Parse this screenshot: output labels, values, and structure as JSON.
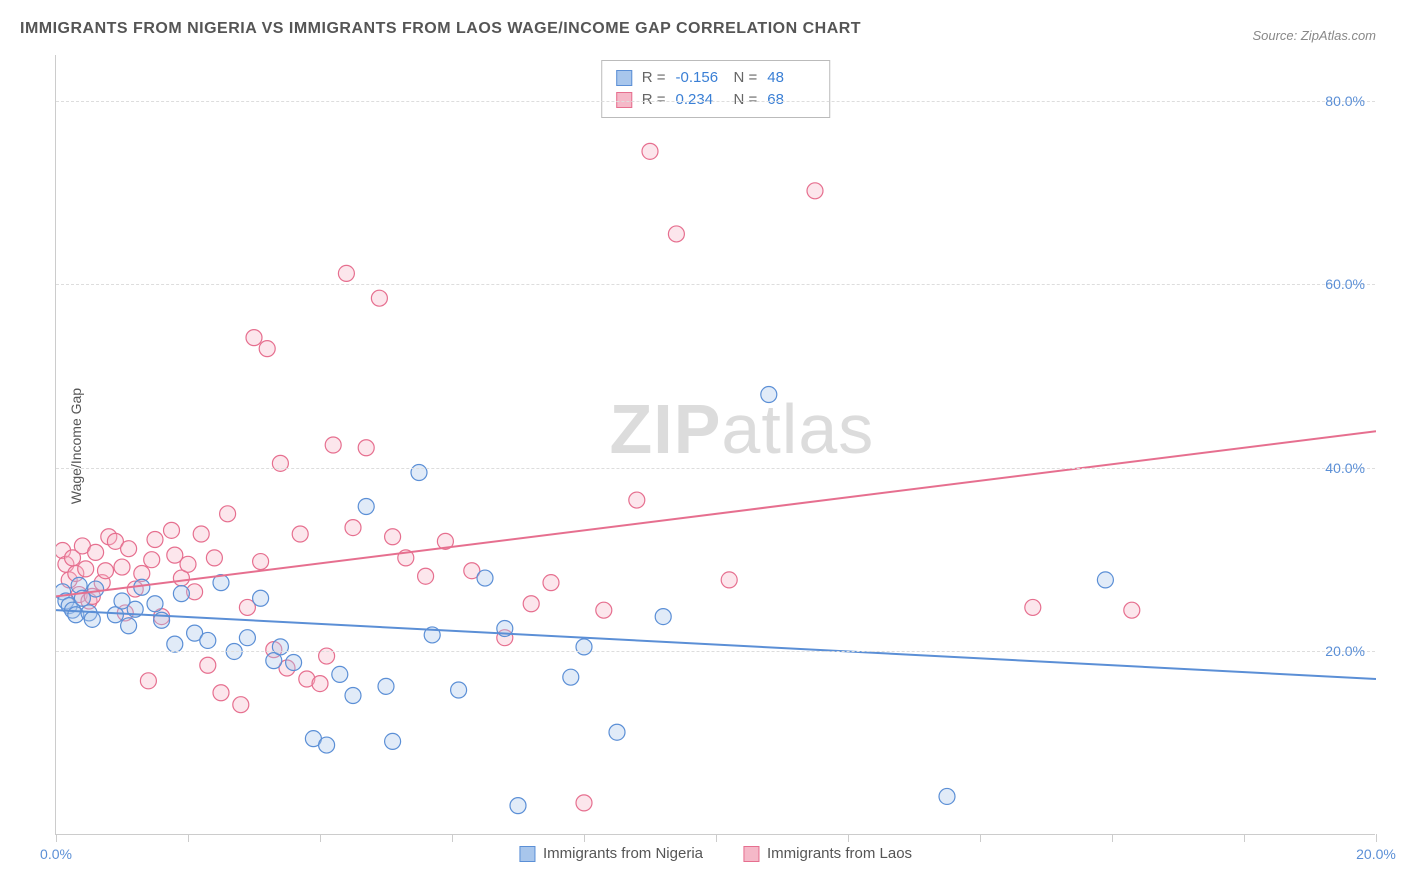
{
  "title": "IMMIGRANTS FROM NIGERIA VS IMMIGRANTS FROM LAOS WAGE/INCOME GAP CORRELATION CHART",
  "source_label": "Source: ZipAtlas.com",
  "watermark": {
    "bold": "ZIP",
    "rest": "atlas"
  },
  "ylabel": "Wage/Income Gap",
  "chart": {
    "type": "scatter",
    "background_color": "#ffffff",
    "grid_color": "#dddddd",
    "axis_color": "#cccccc",
    "label_color": "#5b8fd6",
    "xlim": [
      0,
      20
    ],
    "ylim": [
      0,
      85
    ],
    "xticks": [
      0,
      2,
      4,
      6,
      8,
      10,
      12,
      14,
      16,
      18,
      20
    ],
    "xticks_labeled": [
      0,
      20
    ],
    "yticks": [
      20,
      40,
      60,
      80
    ],
    "xtick_format_suffix": "%",
    "ytick_format_suffix": "%",
    "marker_radius": 8,
    "marker_fill_opacity": 0.35,
    "marker_stroke_width": 1.2,
    "line_width": 2,
    "series": [
      {
        "name": "Immigrants from Nigeria",
        "color_stroke": "#5b8fd6",
        "color_fill": "#a8c6ec",
        "R": "-0.156",
        "N": "48",
        "trend": {
          "x1": 0,
          "y1": 24.5,
          "x2": 20,
          "y2": 17.0
        },
        "points": [
          [
            0.1,
            26.5
          ],
          [
            0.15,
            25.5
          ],
          [
            0.2,
            25
          ],
          [
            0.25,
            24.5
          ],
          [
            0.3,
            24
          ],
          [
            0.35,
            27.2
          ],
          [
            0.4,
            25.8
          ],
          [
            0.5,
            24.2
          ],
          [
            0.55,
            23.5
          ],
          [
            0.6,
            26.8
          ],
          [
            0.9,
            24
          ],
          [
            1.0,
            25.5
          ],
          [
            1.1,
            22.8
          ],
          [
            1.2,
            24.6
          ],
          [
            1.3,
            27
          ],
          [
            1.5,
            25.2
          ],
          [
            1.6,
            23.4
          ],
          [
            1.8,
            20.8
          ],
          [
            1.9,
            26.3
          ],
          [
            2.1,
            22
          ],
          [
            2.3,
            21.2
          ],
          [
            2.5,
            27.5
          ],
          [
            2.7,
            20
          ],
          [
            2.9,
            21.5
          ],
          [
            3.1,
            25.8
          ],
          [
            3.3,
            19
          ],
          [
            3.4,
            20.5
          ],
          [
            3.6,
            18.8
          ],
          [
            3.9,
            10.5
          ],
          [
            4.1,
            9.8
          ],
          [
            4.3,
            17.5
          ],
          [
            4.5,
            15.2
          ],
          [
            4.7,
            35.8
          ],
          [
            5.0,
            16.2
          ],
          [
            5.1,
            10.2
          ],
          [
            5.5,
            39.5
          ],
          [
            5.7,
            21.8
          ],
          [
            6.1,
            15.8
          ],
          [
            6.5,
            28
          ],
          [
            7.0,
            3.2
          ],
          [
            7.8,
            17.2
          ],
          [
            8.5,
            11.2
          ],
          [
            9.2,
            23.8
          ],
          [
            10.8,
            48
          ],
          [
            13.5,
            4.2
          ],
          [
            15.9,
            27.8
          ],
          [
            8.0,
            20.5
          ],
          [
            6.8,
            22.5
          ]
        ]
      },
      {
        "name": "Immigrants from Laos",
        "color_stroke": "#e66f8f",
        "color_fill": "#f5b8c8",
        "R": "0.234",
        "N": "68",
        "trend": {
          "x1": 0,
          "y1": 26.0,
          "x2": 20,
          "y2": 44.0
        },
        "points": [
          [
            0.1,
            31
          ],
          [
            0.15,
            29.5
          ],
          [
            0.2,
            27.8
          ],
          [
            0.25,
            30.2
          ],
          [
            0.3,
            28.5
          ],
          [
            0.35,
            26.2
          ],
          [
            0.4,
            31.5
          ],
          [
            0.45,
            29
          ],
          [
            0.5,
            25.5
          ],
          [
            0.6,
            30.8
          ],
          [
            0.7,
            27.5
          ],
          [
            0.8,
            32.5
          ],
          [
            0.9,
            32
          ],
          [
            1.0,
            29.2
          ],
          [
            1.1,
            31.2
          ],
          [
            1.2,
            26.8
          ],
          [
            1.3,
            28.5
          ],
          [
            1.5,
            32.2
          ],
          [
            1.6,
            23.8
          ],
          [
            1.8,
            30.5
          ],
          [
            1.9,
            28
          ],
          [
            2.0,
            29.5
          ],
          [
            2.2,
            32.8
          ],
          [
            2.3,
            18.5
          ],
          [
            2.5,
            15.5
          ],
          [
            2.6,
            35
          ],
          [
            2.8,
            14.2
          ],
          [
            3.0,
            54.2
          ],
          [
            3.1,
            29.8
          ],
          [
            3.3,
            20.2
          ],
          [
            3.5,
            18.2
          ],
          [
            3.7,
            32.8
          ],
          [
            3.8,
            17
          ],
          [
            4.0,
            16.5
          ],
          [
            4.2,
            42.5
          ],
          [
            4.4,
            61.2
          ],
          [
            4.5,
            33.5
          ],
          [
            4.7,
            42.2
          ],
          [
            4.9,
            58.5
          ],
          [
            5.1,
            32.5
          ],
          [
            5.3,
            30.2
          ],
          [
            5.6,
            28.2
          ],
          [
            5.9,
            32
          ],
          [
            6.3,
            28.8
          ],
          [
            6.8,
            21.5
          ],
          [
            7.2,
            25.2
          ],
          [
            7.5,
            27.5
          ],
          [
            8.0,
            3.5
          ],
          [
            8.3,
            24.5
          ],
          [
            8.8,
            36.5
          ],
          [
            9.0,
            74.5
          ],
          [
            9.4,
            65.5
          ],
          [
            10.2,
            27.8
          ],
          [
            11.5,
            70.2
          ],
          [
            14.8,
            24.8
          ],
          [
            16.3,
            24.5
          ],
          [
            1.4,
            16.8
          ],
          [
            2.1,
            26.5
          ],
          [
            2.9,
            24.8
          ],
          [
            3.4,
            40.5
          ],
          [
            4.1,
            19.5
          ],
          [
            0.55,
            26
          ],
          [
            0.75,
            28.8
          ],
          [
            1.05,
            24.2
          ],
          [
            1.45,
            30
          ],
          [
            1.75,
            33.2
          ],
          [
            2.4,
            30.2
          ],
          [
            3.2,
            53
          ]
        ]
      }
    ]
  },
  "stats_box": {
    "R_label": "R =",
    "N_label": "N ="
  },
  "bottom_legend_labels": [
    "Immigrants from Nigeria",
    "Immigrants from Laos"
  ]
}
